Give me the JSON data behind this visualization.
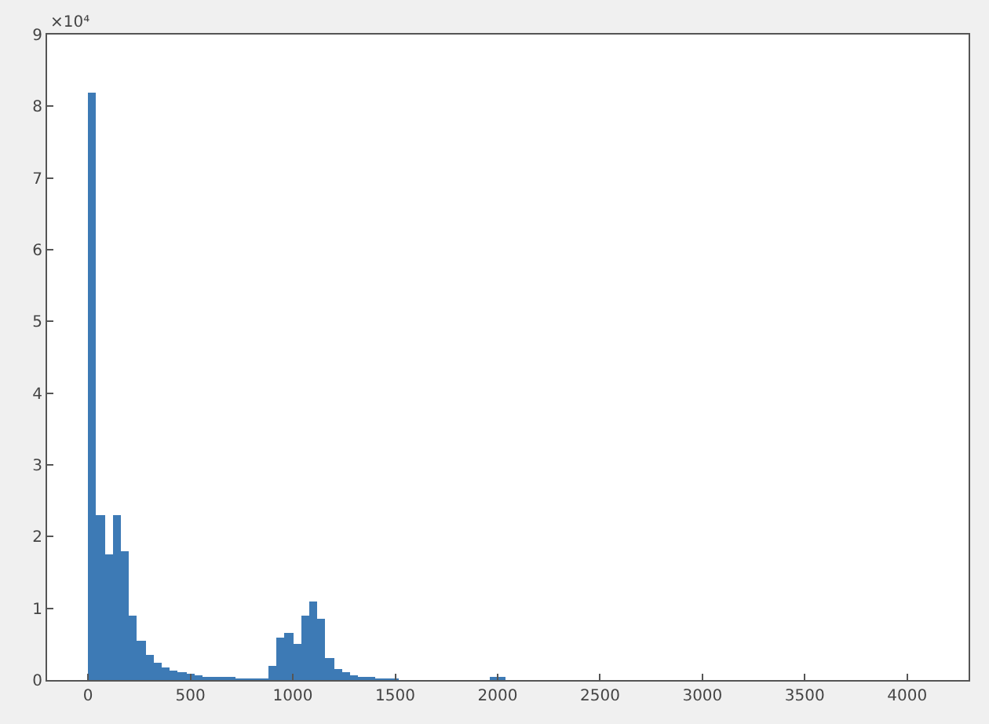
{
  "chart_data": {
    "type": "histogram",
    "bins": [
      0,
      40,
      80,
      120,
      160,
      200,
      240,
      280,
      320,
      360,
      400,
      440,
      480,
      520,
      560,
      600,
      640,
      680,
      720,
      760,
      800,
      840,
      880,
      920,
      960,
      1000,
      1040,
      1080,
      1120,
      1160,
      1200,
      1240,
      1280,
      1320,
      1360,
      1400,
      1440,
      1480,
      1520,
      1560,
      1600,
      1640,
      1680,
      1720,
      1760,
      1800,
      1840,
      1880,
      1920,
      1960,
      2000,
      2040,
      2080
    ],
    "values": [
      8.2,
      2.3,
      1.75,
      2.3,
      1.8,
      0.9,
      0.55,
      0.35,
      0.25,
      0.18,
      0.13,
      0.1,
      0.08,
      0.06,
      0.05,
      0.04,
      0.03,
      0.03,
      0.02,
      0.02,
      0.02,
      0.02,
      0.2,
      0.6,
      0.65,
      0.5,
      0.9,
      1.1,
      0.85,
      0.3,
      0.15,
      0.1,
      0.06,
      0.04,
      0.03,
      0.02,
      0.02,
      0.01,
      0,
      0,
      0,
      0,
      0,
      0,
      0,
      0,
      0,
      0,
      0,
      0.04,
      0.04,
      0
    ],
    "color": "#3d7ab5",
    "xlim": [
      -200,
      4300
    ],
    "xticks": [
      0,
      500,
      1000,
      1500,
      2000,
      2500,
      3000,
      3500,
      4000
    ],
    "ylim": [
      0,
      9
    ],
    "yticks": [
      0,
      1,
      2,
      3,
      4,
      5,
      6,
      7,
      8,
      9
    ],
    "annotations": [
      "×10⁴"
    ]
  }
}
